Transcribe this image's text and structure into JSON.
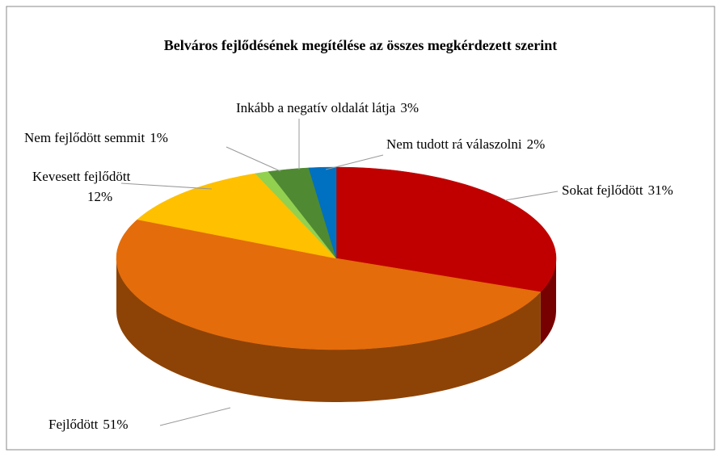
{
  "chart_data": {
    "type": "pie",
    "title": "Belváros fejlődésének megítélése az összes megkérdezett szerint",
    "categories": [
      "Sokat fejlődött",
      "Fejlődött",
      "Kevesett fejlődött",
      "Nem fejlődött semmit",
      "Inkább a negatív oldalát látja",
      "Nem tudott rá válaszolni"
    ],
    "values": [
      31,
      51,
      12,
      1,
      3,
      2
    ],
    "value_labels": [
      "31%",
      "51%",
      "12%",
      "1%",
      "3%",
      "2%"
    ],
    "colors": [
      "#c00000",
      "#e46c0a",
      "#ffc000",
      "#92d050",
      "#4f8a32",
      "#0070c0"
    ]
  }
}
